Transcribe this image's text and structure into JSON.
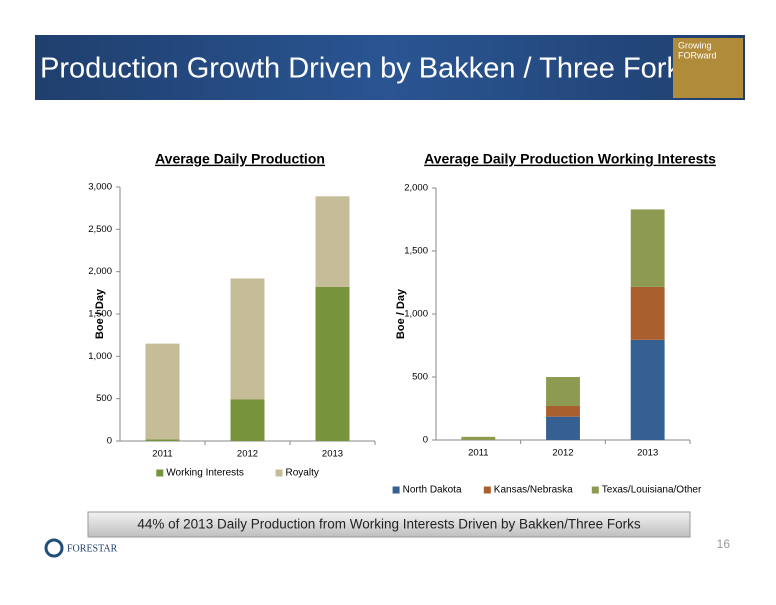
{
  "header": {
    "title": "Production Growth Driven by Bakken / Three Forks",
    "logo": [
      "Growing",
      "FORward"
    ]
  },
  "chart_data": [
    {
      "type": "bar",
      "stacked": true,
      "title": "Average Daily Production",
      "ylabel": "Boe / Day",
      "categories": [
        "2011",
        "2012",
        "2013"
      ],
      "series": [
        {
          "name": "Working Interests",
          "color": "#77933c",
          "values": [
            20,
            490,
            1820
          ]
        },
        {
          "name": "Royalty",
          "color": "#c4bd97",
          "values": [
            1130,
            1430,
            1070
          ]
        }
      ],
      "ylim": [
        0,
        3000
      ],
      "yticks": [
        0,
        500,
        {
          "value": 1000,
          "label": "1,000"
        },
        {
          "value": 1500,
          "label": "1,500"
        },
        {
          "value": 2000,
          "label": "2,000"
        },
        {
          "value": 2500,
          "label": "2,500"
        },
        {
          "value": 3000,
          "label": "3,000"
        }
      ],
      "grid": false,
      "legend": "bottom"
    },
    {
      "type": "bar",
      "stacked": true,
      "title": "Average Daily Production Working Interests",
      "ylabel": "Boe / Day",
      "categories": [
        "2011",
        "2012",
        "2013"
      ],
      "series": [
        {
          "name": "North Dakota",
          "color": "#376092",
          "values": [
            0,
            185,
            795
          ]
        },
        {
          "name": "Kansas/Nebraska",
          "color": "#a9602e",
          "values": [
            0,
            85,
            420
          ]
        },
        {
          "name": "Texas/Louisiana/Other",
          "color": "#8c9a52",
          "values": [
            25,
            230,
            615
          ]
        }
      ],
      "ylim": [
        0,
        2000
      ],
      "yticks": [
        0,
        500,
        {
          "value": 1000,
          "label": "1,000"
        },
        {
          "value": 1500,
          "label": "1,500"
        },
        {
          "value": 2000,
          "label": "2,000"
        }
      ],
      "grid": false,
      "legend": "bottom"
    }
  ],
  "footer": {
    "banner": "44% of 2013 Daily Production from Working Interests Driven by Bakken/Three Forks",
    "company": "FORESTAR",
    "page": "16"
  }
}
